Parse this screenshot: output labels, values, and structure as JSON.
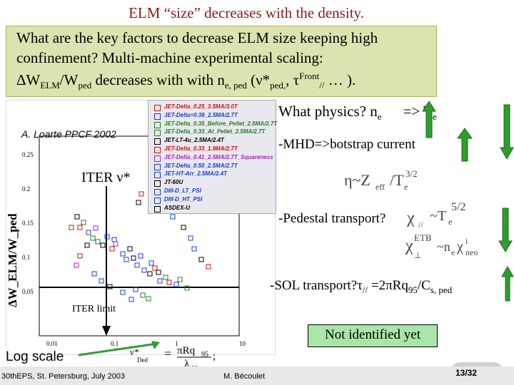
{
  "title": "ELM “size” decreases with the density.",
  "question": {
    "line1": "What are the key factors to decrease ELM size keeping high",
    "line2": "confinement? Multi-machine experimental scaling:",
    "line3_a": "ΔW",
    "line3_sub1": "ELM",
    "line3_b": "/W",
    "line3_sub2": "ped",
    "line3_c": " decreases with with n",
    "line3_sub3": "e, ped",
    "line3_d": " (ν*",
    "line3_sub4": "ped,",
    "line3_e": ", τ",
    "line3_sup": "Front",
    "line3_sub5": "//",
    "line3_f": " … )."
  },
  "figure": {
    "citation": "A. Loarte PPCF 2002",
    "ylabel": "ΔW_ELM/W_ped",
    "iter_label": "ITER ν*",
    "iter_limit": "ITER limit",
    "ytick_labels": [
      "0.25",
      "0.2",
      "0.15",
      "0.1",
      "0.05"
    ],
    "xtick_labels": [
      "0.01",
      "0.1",
      "1",
      "10"
    ],
    "legend": [
      {
        "label": "JET-Delta_0.25_3.5MA/3.0T",
        "color": "#d01010"
      },
      {
        "label": "JET-Delta=0.38_2.5MA/2.7T",
        "color": "#1a3cd0"
      },
      {
        "label": "JET-Delta_0.35_Before_Pellet_2.5MA/2.7T",
        "color": "#208020"
      },
      {
        "label": "JET-Delta_0.33_At_Pellet_2.5MA/2.7T",
        "color": "#208020"
      },
      {
        "label": "JET-LT-4u_2.5MA/2.4T",
        "color": "#000000"
      },
      {
        "label": "JET-Delta_0.33_1.9MA/2.7T",
        "color": "#d01010"
      },
      {
        "label": "JET-Delta_0.41_2.5MA/2.7T_Squareness",
        "color": "#b020c0"
      },
      {
        "label": "JET-Delta_0.50_2.5MA/2.7T",
        "color": "#1a3cd0"
      },
      {
        "label": "JET-HT-Arr_2.5MA/2.4T",
        "color": "#1a3cd0"
      },
      {
        "label": "JT-60U",
        "color": "#000000"
      },
      {
        "label": "DIII-D_LT_PSI",
        "color": "#1a3cd0"
      },
      {
        "label": "DIII-D_HT_PSI",
        "color": "#1a3cd0"
      },
      {
        "label": "ASDEX-U",
        "color": "#000000"
      }
    ],
    "xlabel_eq": "= πRq95 ; λee",
    "nu_label": "ν*Ded"
  },
  "right": {
    "q1": "What  physics? n",
    "q1_sub": "e",
    "q1_arrow": "=>  T",
    "q1_sub2": "e",
    "mhd": "-MHD=>botstrap current",
    "pedestal": "-Pedestal transport?",
    "sol": "-SOL transport?τ",
    "sol_sub": "//",
    "sol_eq": " =2πRq",
    "sol_sub2": "95",
    "sol_eq2": "/C",
    "sol_sub3": "s, ped",
    "not_identified": "Not identified yet"
  },
  "log_scale": "Log scale",
  "footer": {
    "left": "30thEPS, St. Petersburg, July 2003",
    "middle": "M. Bécoulet",
    "right": "13/32"
  },
  "colors": {
    "arrow_green": "#2e9e2e",
    "title": "#8b1a1a",
    "box": "#dde3b0"
  }
}
